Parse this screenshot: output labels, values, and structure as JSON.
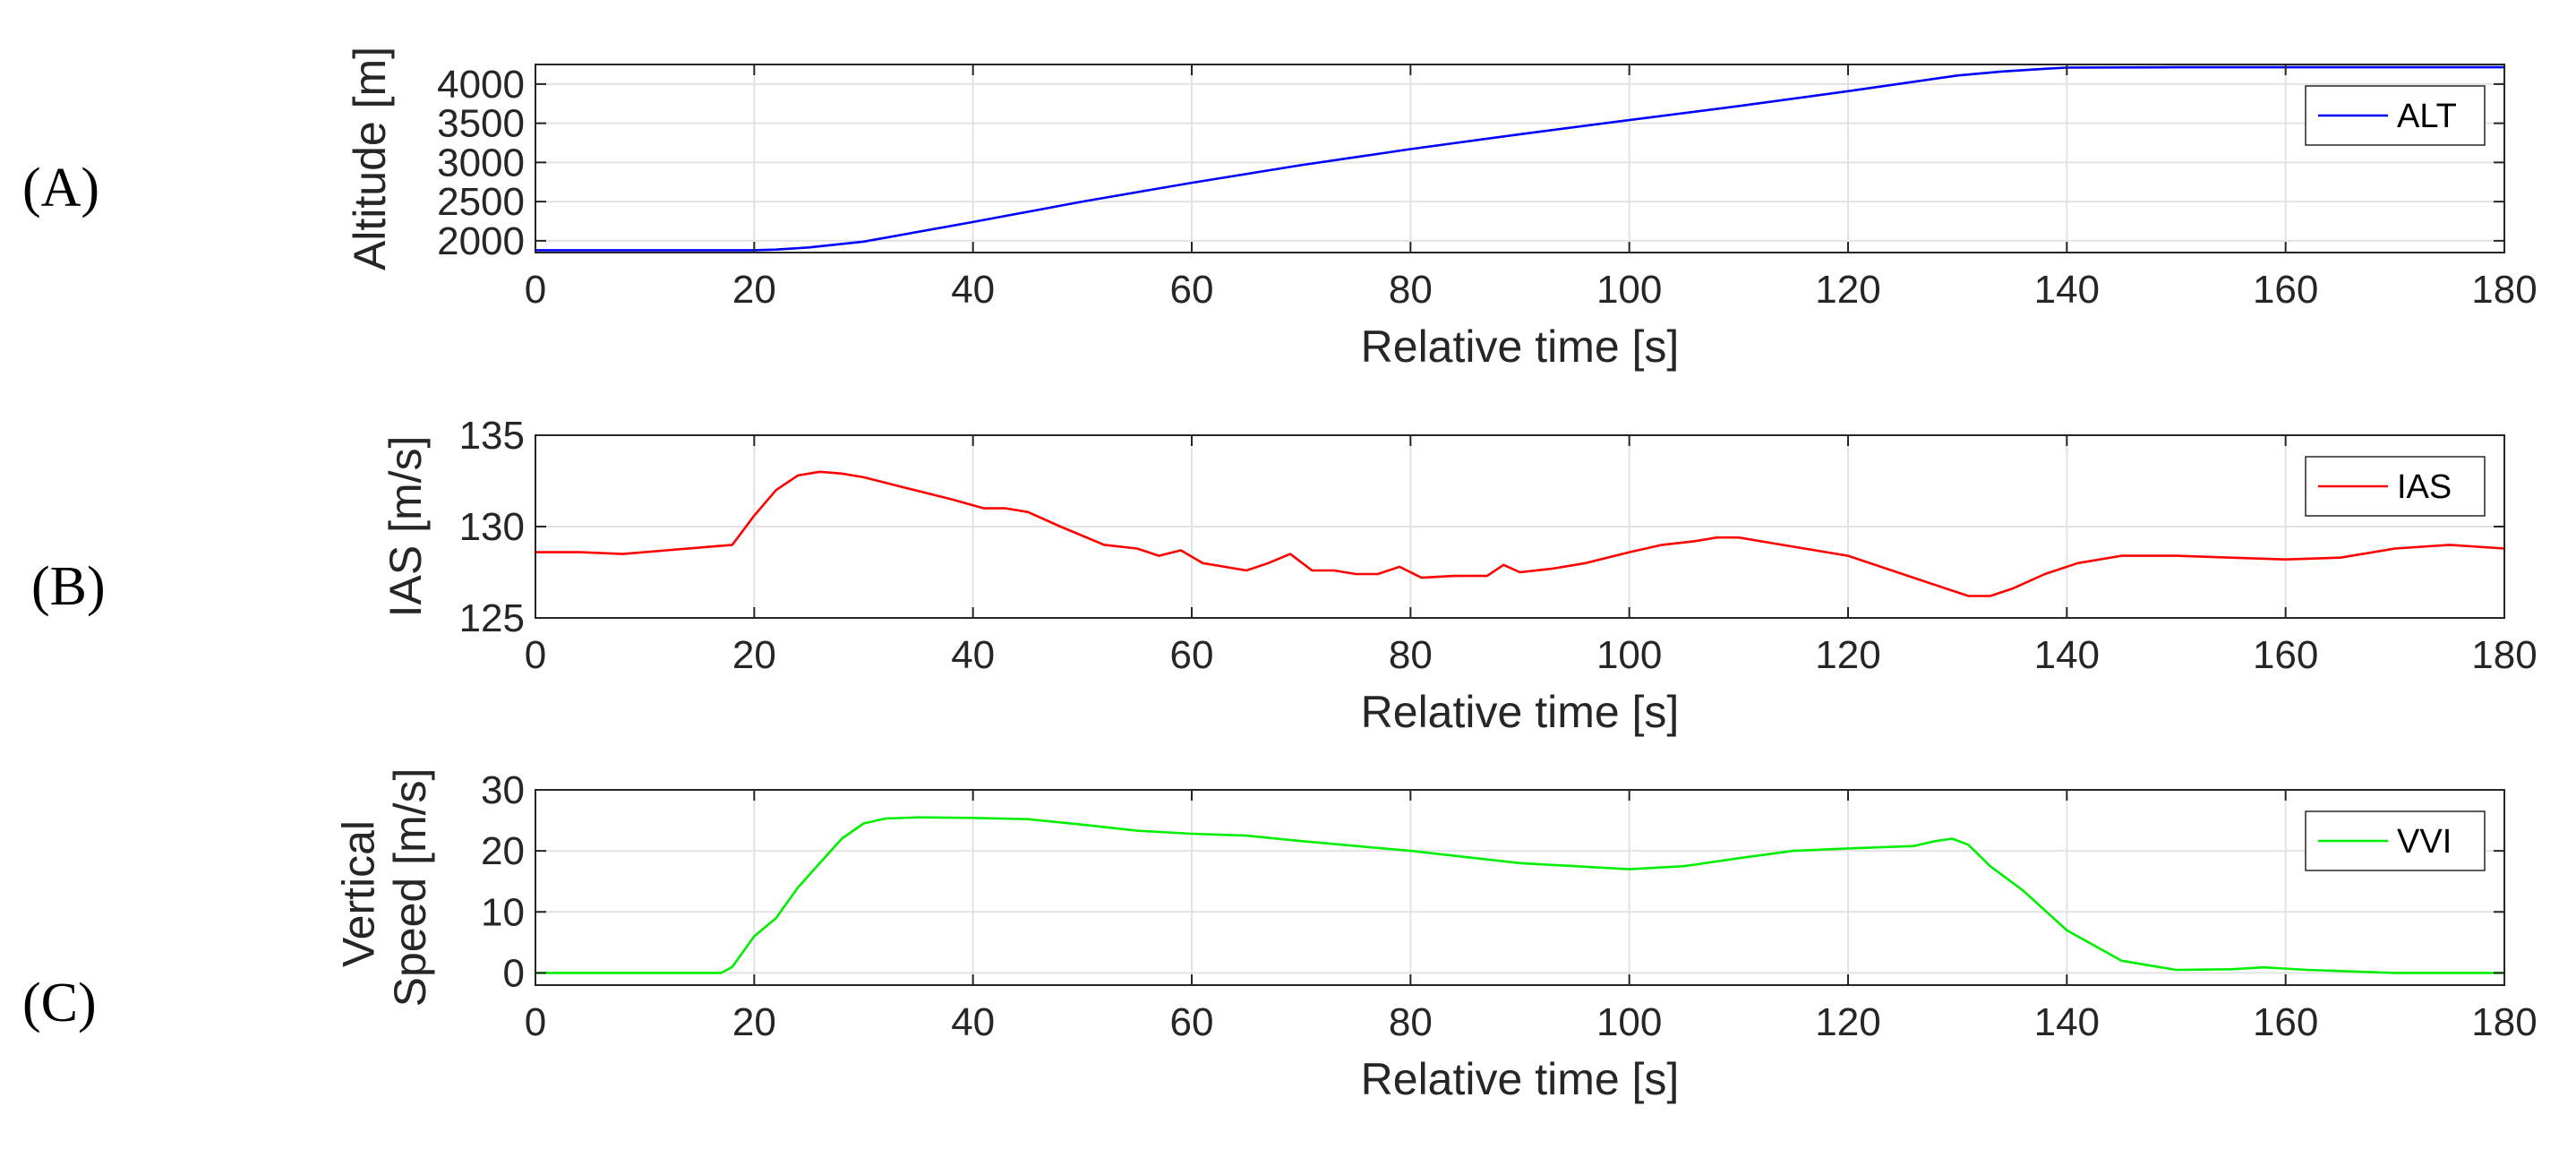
{
  "chart_data": [
    {
      "type": "line",
      "panel_label": "(A)",
      "title": "",
      "xlabel": "Relative time [s]",
      "ylabel": "Altitude [m]",
      "xlim": [
        0,
        180
      ],
      "ylim": [
        1850,
        4250
      ],
      "xticks": [
        0,
        20,
        40,
        60,
        80,
        100,
        120,
        140,
        160,
        180
      ],
      "yticks": [
        2000,
        2500,
        3000,
        3500,
        4000
      ],
      "grid": true,
      "legend_position": "top-right",
      "series": [
        {
          "name": "ALT",
          "color": "#0000ff",
          "x": [
            0,
            10,
            20,
            22,
            25,
            30,
            40,
            50,
            60,
            70,
            80,
            90,
            100,
            110,
            120,
            126,
            130,
            134,
            138,
            140,
            150,
            160,
            170,
            180
          ],
          "y": [
            1880,
            1880,
            1880,
            1888,
            1915,
            1990,
            2240,
            2500,
            2740,
            2965,
            3170,
            3360,
            3540,
            3720,
            3910,
            4030,
            4110,
            4160,
            4195,
            4210,
            4215,
            4215,
            4215,
            4215
          ]
        }
      ]
    },
    {
      "type": "line",
      "panel_label": "(B)",
      "title": "",
      "xlabel": "Relative time [s]",
      "ylabel": "IAS [m/s]",
      "xlim": [
        0,
        180
      ],
      "ylim": [
        125,
        135
      ],
      "xticks": [
        0,
        20,
        40,
        60,
        80,
        100,
        120,
        140,
        160,
        180
      ],
      "yticks": [
        125,
        130,
        135
      ],
      "grid": true,
      "legend_position": "top-right",
      "series": [
        {
          "name": "IAS",
          "color": "#ff0000",
          "x": [
            0,
            4,
            8,
            12,
            16,
            18,
            20,
            22,
            24,
            26,
            28,
            30,
            34,
            38,
            41,
            43,
            45,
            48,
            52,
            55,
            57,
            59,
            61,
            63,
            65,
            67,
            69,
            71,
            73,
            75,
            77,
            79,
            81,
            84,
            87,
            88.5,
            90,
            93,
            96,
            100,
            103,
            106,
            108,
            110,
            113,
            116,
            120,
            124,
            128,
            131,
            133,
            135,
            138,
            141,
            145,
            150,
            155,
            160,
            165,
            170,
            175,
            180
          ],
          "y": [
            128.6,
            128.6,
            128.5,
            128.7,
            128.9,
            129.0,
            130.6,
            132.0,
            132.8,
            133.0,
            132.9,
            132.7,
            132.1,
            131.5,
            131.0,
            131.0,
            130.8,
            130.0,
            129.0,
            128.8,
            128.4,
            128.7,
            128.0,
            127.8,
            127.6,
            128.0,
            128.5,
            127.6,
            127.6,
            127.4,
            127.4,
            127.8,
            127.2,
            127.3,
            127.3,
            127.9,
            127.5,
            127.7,
            128.0,
            128.6,
            129.0,
            129.2,
            129.4,
            129.4,
            129.1,
            128.8,
            128.4,
            127.6,
            126.8,
            126.2,
            126.2,
            126.6,
            127.4,
            128.0,
            128.4,
            128.4,
            128.3,
            128.2,
            128.3,
            128.8,
            129.0,
            128.8
          ]
        }
      ]
    },
    {
      "type": "line",
      "panel_label": "(C)",
      "title": "",
      "xlabel": "Relative time [s]",
      "ylabel": [
        "Vertical",
        "Speed [m/s]"
      ],
      "xlim": [
        0,
        180
      ],
      "ylim": [
        -2,
        30
      ],
      "xticks": [
        0,
        20,
        40,
        60,
        80,
        100,
        120,
        140,
        160,
        180
      ],
      "yticks": [
        0,
        10,
        20,
        30
      ],
      "grid": true,
      "legend_position": "top-right",
      "series": [
        {
          "name": "VVI",
          "color": "#00ee00",
          "x": [
            0,
            10,
            17,
            18,
            20,
            22,
            24,
            26,
            28,
            30,
            32,
            35,
            40,
            45,
            50,
            55,
            60,
            65,
            70,
            80,
            90,
            100,
            105,
            110,
            115,
            120,
            126,
            128,
            129.5,
            131,
            133,
            136,
            140,
            145,
            150,
            155,
            158,
            162,
            170,
            180
          ],
          "y": [
            0,
            0,
            0,
            1,
            6,
            9,
            14,
            18,
            22,
            24.5,
            25.3,
            25.5,
            25.4,
            25.2,
            24.3,
            23.3,
            22.8,
            22.5,
            21.6,
            20.0,
            18.0,
            17.0,
            17.5,
            18.8,
            20.0,
            20.4,
            20.8,
            21.6,
            22.0,
            21.0,
            17.5,
            13.5,
            7.0,
            2.0,
            0.5,
            0.6,
            0.9,
            0.5,
            0.0,
            0.0
          ]
        }
      ]
    }
  ]
}
